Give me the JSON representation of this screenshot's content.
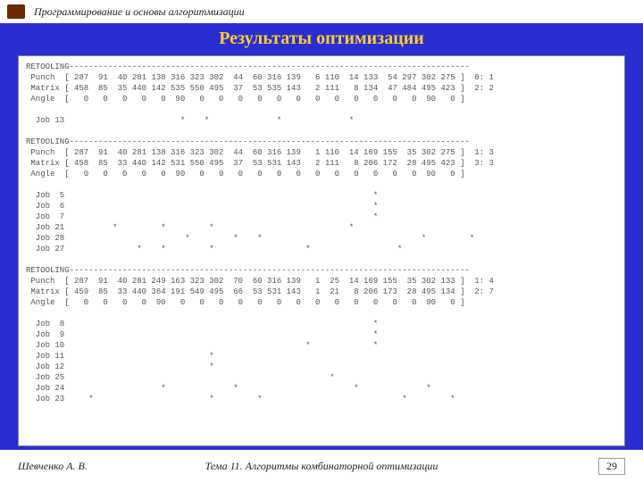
{
  "header": {
    "course_title": "Программирование и основы алгоритмизации"
  },
  "section": {
    "title": "Результаты оптимизации"
  },
  "log": {
    "lines": [
      "RETOOLING-----------------------------------------------------------------------------------",
      " Punch  [ 287  91  40 281 138 316 323 302  44  60 316 139   6 110  14 133  54 297 302 275 ]  0: 1",
      " Matrix [ 458  85  35 440 142 535 550 495  37  53 535 143   2 111   8 134  47 484 495 423 ]  2: 2",
      " Angle  [   0   0   0   0   0  90   0   0   0   0   0   0   0   0   0   0   0   0  90   0 ]",
      "",
      "  Job 13                        *    *              *              *",
      "",
      "RETOOLING-----------------------------------------------------------------------------------",
      " Punch  [ 287  91  40 281 138 316 323 302  44  60 316 139   1 110  14 169 155  35 302 275 ]  1: 3",
      " Matrix [ 458  85  33 440 142 531 550 495  37  53 531 143   2 111   8 206 172  28 495 423 ]  3: 3",
      " Angle  [   0   0   0   0   0  90   0   0   0   0   0   0   0   0   0   0   0   0  90   0 ]",
      "",
      "  Job  5                                                                *",
      "  Job  6                                                                *",
      "  Job  7                                                                *",
      "  Job 21          *         *         *                            *",
      "  Job 28                         *         *    *                                 *         *",
      "  Job 27               *    *         *                   *                  *",
      "",
      "RETOOLING-----------------------------------------------------------------------------------",
      " Punch  [ 287  91  40 281 249 163 323 302  70  60 316 139   1  25  14 169 155  35 302 133 ]  1: 4",
      " Matrix [ 459  85  33 440 364 191 549 495  66  53 531 143   1  21   8 206 173  28 495 134 ]  2: 7",
      " Angle  [   0   0   0   0  90   0   0   0   0   0   0   0   0   0   0   0   0   0  90   0 ]",
      "",
      "  Job  8                                                                *",
      "  Job  9                                                                *",
      "  Job 10                                                  *             *",
      "  Job 11                              *",
      "  Job 12                              *",
      "  Job 25                                                       *",
      "  Job 24                    *              *                        *              *",
      "  Job 23     *                        *         *                             *         *"
    ]
  },
  "footer": {
    "author": "Шевченко А. В.",
    "topic": "Тема 11. Алгоритмы комбинаторной оптимизации",
    "page_number": "29"
  },
  "colors": {
    "band": "#2a2ed0",
    "title": "#ffcc33",
    "mono_text": "#555555"
  }
}
